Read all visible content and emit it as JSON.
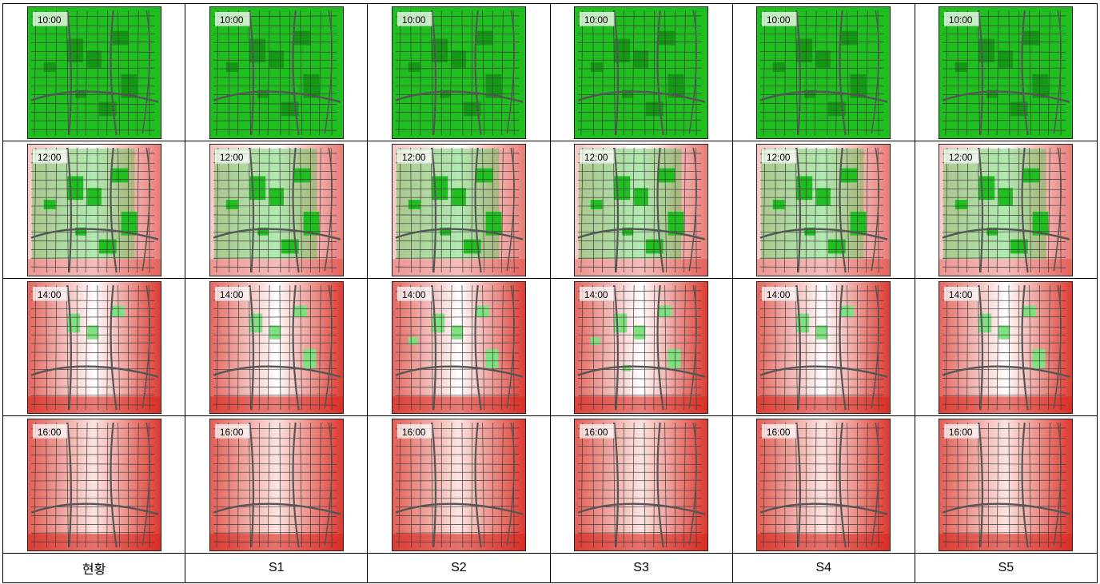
{
  "scenarios": [
    "현황",
    "S1",
    "S2",
    "S3",
    "S4",
    "S5"
  ],
  "times": [
    "10:00",
    "12:00",
    "14:00",
    "16:00"
  ],
  "cells": [
    [
      {
        "tone": "green"
      },
      {
        "tone": "green"
      },
      {
        "tone": "green"
      },
      {
        "tone": "green"
      },
      {
        "tone": "green"
      },
      {
        "tone": "green"
      }
    ],
    [
      {
        "tone": "mixed-green"
      },
      {
        "tone": "mixed-green"
      },
      {
        "tone": "mixed-green"
      },
      {
        "tone": "mixed-green"
      },
      {
        "tone": "mixed-green"
      },
      {
        "tone": "mixed-green"
      }
    ],
    [
      {
        "tone": "mixed-red"
      },
      {
        "tone": "mixed-red"
      },
      {
        "tone": "mixed-red"
      },
      {
        "tone": "mixed-red"
      },
      {
        "tone": "mixed-red"
      },
      {
        "tone": "mixed-red"
      }
    ],
    [
      {
        "tone": "red"
      },
      {
        "tone": "red"
      },
      {
        "tone": "red"
      },
      {
        "tone": "red"
      },
      {
        "tone": "red"
      },
      {
        "tone": "red"
      }
    ]
  ],
  "colors": {
    "green": "#1fbf1f",
    "dark_green": "#0a7a0a",
    "red": "#d9261c",
    "pale_red": "#f4b8b0",
    "line": "#3a3a3a"
  }
}
